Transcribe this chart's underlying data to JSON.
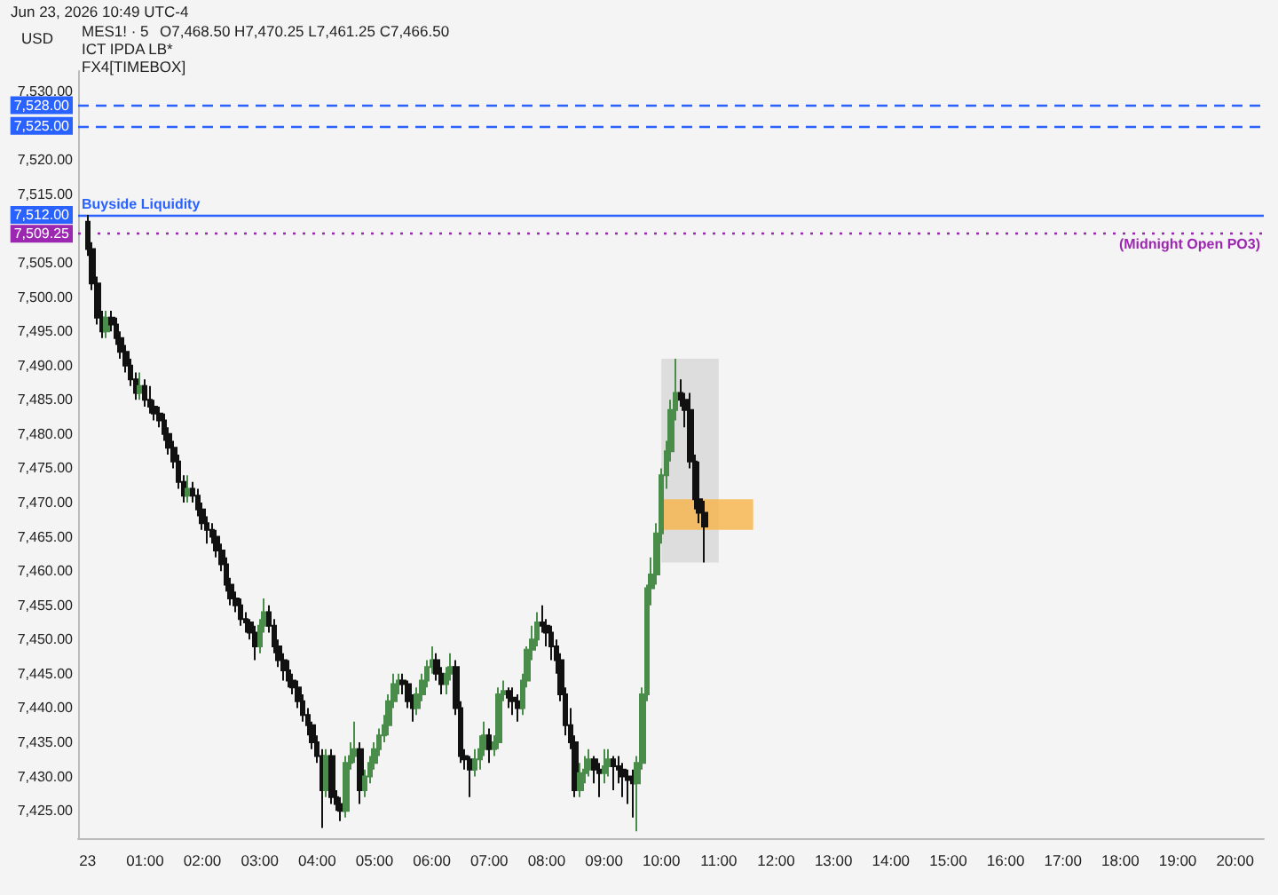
{
  "chart_data": {
    "type": "candlestick",
    "title": "MES1! · 5",
    "ylabel": "USD",
    "annotations": [
      "Jun 23, 2026 10:49 UTC-4",
      "O7,468.50 H7,470.25 L7,461.25 C7,466.50",
      "ICT IPDA LB*",
      "FX4[TIMEBOX]"
    ],
    "x": [
      "2026-06-23T00:00",
      "2026-06-23T00:05",
      "2026-06-23T00:10",
      "2026-06-23T00:15",
      "2026-06-23T00:20",
      "2026-06-23T00:25",
      "2026-06-23T00:30",
      "2026-06-23T00:35",
      "2026-06-23T00:40",
      "2026-06-23T00:45",
      "2026-06-23T00:50",
      "2026-06-23T00:55",
      "2026-06-23T01:00",
      "2026-06-23T01:05",
      "2026-06-23T01:10",
      "2026-06-23T01:15",
      "2026-06-23T01:20",
      "2026-06-23T01:25",
      "2026-06-23T01:30",
      "2026-06-23T01:35",
      "2026-06-23T01:40",
      "2026-06-23T01:45",
      "2026-06-23T01:50",
      "2026-06-23T01:55",
      "2026-06-23T02:00",
      "2026-06-23T02:05",
      "2026-06-23T02:10",
      "2026-06-23T02:15",
      "2026-06-23T02:20",
      "2026-06-23T02:25",
      "2026-06-23T02:30",
      "2026-06-23T02:35",
      "2026-06-23T02:40",
      "2026-06-23T02:45",
      "2026-06-23T02:50",
      "2026-06-23T02:55",
      "2026-06-23T03:00",
      "2026-06-23T03:05",
      "2026-06-23T03:10",
      "2026-06-23T03:15",
      "2026-06-23T03:20",
      "2026-06-23T03:25",
      "2026-06-23T03:30",
      "2026-06-23T03:35",
      "2026-06-23T03:40",
      "2026-06-23T03:45",
      "2026-06-23T03:50",
      "2026-06-23T03:55",
      "2026-06-23T04:00",
      "2026-06-23T04:05",
      "2026-06-23T04:10",
      "2026-06-23T04:15",
      "2026-06-23T04:20",
      "2026-06-23T04:25",
      "2026-06-23T04:30",
      "2026-06-23T04:35",
      "2026-06-23T04:40",
      "2026-06-23T04:45",
      "2026-06-23T04:50",
      "2026-06-23T04:55",
      "2026-06-23T05:00",
      "2026-06-23T05:05",
      "2026-06-23T05:10",
      "2026-06-23T05:15",
      "2026-06-23T05:20",
      "2026-06-23T05:25",
      "2026-06-23T05:30",
      "2026-06-23T05:35",
      "2026-06-23T05:40",
      "2026-06-23T05:45",
      "2026-06-23T05:50",
      "2026-06-23T05:55",
      "2026-06-23T06:00",
      "2026-06-23T06:05",
      "2026-06-23T06:10",
      "2026-06-23T06:15",
      "2026-06-23T06:20",
      "2026-06-23T06:25",
      "2026-06-23T06:30",
      "2026-06-23T06:35",
      "2026-06-23T06:40",
      "2026-06-23T06:45",
      "2026-06-23T06:50",
      "2026-06-23T06:55",
      "2026-06-23T07:00",
      "2026-06-23T07:05",
      "2026-06-23T07:10",
      "2026-06-23T07:15",
      "2026-06-23T07:20",
      "2026-06-23T07:25",
      "2026-06-23T07:30",
      "2026-06-23T07:35",
      "2026-06-23T07:40",
      "2026-06-23T07:45",
      "2026-06-23T07:50",
      "2026-06-23T07:55",
      "2026-06-23T08:00",
      "2026-06-23T08:05",
      "2026-06-23T08:10",
      "2026-06-23T08:15",
      "2026-06-23T08:20",
      "2026-06-23T08:25",
      "2026-06-23T08:30",
      "2026-06-23T08:35",
      "2026-06-23T08:40",
      "2026-06-23T08:45",
      "2026-06-23T08:50",
      "2026-06-23T08:55",
      "2026-06-23T09:00",
      "2026-06-23T09:05",
      "2026-06-23T09:10",
      "2026-06-23T09:15",
      "2026-06-23T09:20",
      "2026-06-23T09:25",
      "2026-06-23T09:30",
      "2026-06-23T09:35",
      "2026-06-23T09:40",
      "2026-06-23T09:45",
      "2026-06-23T09:50",
      "2026-06-23T09:55",
      "2026-06-23T10:00",
      "2026-06-23T10:05",
      "2026-06-23T10:10",
      "2026-06-23T10:15",
      "2026-06-23T10:20",
      "2026-06-23T10:25",
      "2026-06-23T10:30",
      "2026-06-23T10:35",
      "2026-06-23T10:40",
      "2026-06-23T10:45"
    ],
    "ohlc": [
      [
        7511,
        7512,
        7506,
        7507
      ],
      [
        7507,
        7508,
        7501,
        7502
      ],
      [
        7502,
        7503,
        7496,
        7497
      ],
      [
        7497,
        7498,
        7494,
        7495
      ],
      [
        7495,
        7498,
        7494,
        7497
      ],
      [
        7497,
        7498,
        7495,
        7496
      ],
      [
        7496,
        7497,
        7493,
        7494
      ],
      [
        7494,
        7495,
        7491,
        7492
      ],
      [
        7492,
        7493,
        7489,
        7490
      ],
      [
        7490,
        7491,
        7487,
        7488
      ],
      [
        7488,
        7489,
        7485,
        7486
      ],
      [
        7486,
        7489,
        7485,
        7487
      ],
      [
        7487,
        7488,
        7484,
        7485
      ],
      [
        7485,
        7487,
        7483,
        7484
      ],
      [
        7484,
        7485,
        7482,
        7483
      ],
      [
        7483,
        7484,
        7481,
        7482
      ],
      [
        7482,
        7483,
        7479,
        7480
      ],
      [
        7480,
        7481,
        7477,
        7478
      ],
      [
        7478,
        7479,
        7475,
        7476
      ],
      [
        7476,
        7477,
        7472,
        7473
      ],
      [
        7473,
        7474,
        7470,
        7471
      ],
      [
        7471,
        7474,
        7470,
        7472
      ],
      [
        7472,
        7473,
        7470,
        7471
      ],
      [
        7471,
        7472,
        7468,
        7469
      ],
      [
        7469,
        7470,
        7466,
        7467
      ],
      [
        7467,
        7468,
        7464,
        7466
      ],
      [
        7466,
        7467,
        7464,
        7465
      ],
      [
        7465,
        7466,
        7462,
        7463
      ],
      [
        7463,
        7464,
        7460,
        7461
      ],
      [
        7461,
        7462,
        7457,
        7458
      ],
      [
        7458,
        7459,
        7455,
        7456
      ],
      [
        7456,
        7457,
        7454,
        7455
      ],
      [
        7455,
        7456,
        7452,
        7453
      ],
      [
        7453,
        7454,
        7451,
        7452.5
      ],
      [
        7452.5,
        7453,
        7450,
        7451
      ],
      [
        7451,
        7452,
        7447,
        7449
      ],
      [
        7449,
        7453,
        7448,
        7452
      ],
      [
        7452,
        7456,
        7451,
        7454
      ],
      [
        7454,
        7455,
        7451,
        7452
      ],
      [
        7452,
        7453,
        7448,
        7449
      ],
      [
        7449,
        7450,
        7446,
        7447
      ],
      [
        7447,
        7448,
        7444,
        7445.5
      ],
      [
        7445.5,
        7447,
        7443,
        7444
      ],
      [
        7444,
        7445,
        7442,
        7443
      ],
      [
        7443,
        7444,
        7440,
        7441
      ],
      [
        7441,
        7442,
        7438,
        7439
      ],
      [
        7439,
        7440,
        7436,
        7437.5
      ],
      [
        7437.5,
        7438,
        7434,
        7435
      ],
      [
        7435,
        7436,
        7432,
        7433
      ],
      [
        7433,
        7434,
        7422.5,
        7428
      ],
      [
        7428,
        7434,
        7427,
        7433
      ],
      [
        7433,
        7434,
        7426,
        7427
      ],
      [
        7427,
        7428,
        7425,
        7426
      ],
      [
        7426,
        7427,
        7423.5,
        7425
      ],
      [
        7425,
        7433,
        7424,
        7432
      ],
      [
        7432,
        7435,
        7431,
        7433
      ],
      [
        7433,
        7438,
        7432,
        7434
      ],
      [
        7434,
        7435,
        7426,
        7428
      ],
      [
        7428,
        7431,
        7427,
        7430
      ],
      [
        7430,
        7433,
        7429,
        7432
      ],
      [
        7432,
        7435,
        7431,
        7434
      ],
      [
        7434,
        7437,
        7433,
        7436
      ],
      [
        7436,
        7439,
        7435,
        7437.5
      ],
      [
        7437.5,
        7442,
        7436,
        7441
      ],
      [
        7441,
        7445,
        7440,
        7443.5
      ],
      [
        7443.5,
        7445,
        7442,
        7444
      ],
      [
        7444,
        7445,
        7442,
        7443.5
      ],
      [
        7443.5,
        7444,
        7440,
        7441
      ],
      [
        7441,
        7442,
        7438,
        7440
      ],
      [
        7440,
        7443,
        7439,
        7442
      ],
      [
        7442,
        7445,
        7441,
        7444
      ],
      [
        7444,
        7447,
        7443,
        7446
      ],
      [
        7446,
        7449,
        7445,
        7447
      ],
      [
        7447,
        7448,
        7444,
        7445
      ],
      [
        7445,
        7446,
        7442,
        7443.5
      ],
      [
        7443.5,
        7446,
        7442,
        7445
      ],
      [
        7445,
        7448,
        7444,
        7446
      ],
      [
        7446,
        7447,
        7439,
        7440
      ],
      [
        7440,
        7441,
        7432,
        7433
      ],
      [
        7433,
        7434,
        7431,
        7432.5
      ],
      [
        7432.5,
        7433,
        7427,
        7431
      ],
      [
        7431,
        7434,
        7430,
        7432.5
      ],
      [
        7432.5,
        7436,
        7431,
        7434
      ],
      [
        7434,
        7438,
        7433,
        7436
      ],
      [
        7436,
        7437,
        7432,
        7434
      ],
      [
        7434,
        7436,
        7433,
        7435
      ],
      [
        7435,
        7443,
        7434,
        7442
      ],
      [
        7442,
        7444,
        7441,
        7442.5
      ],
      [
        7442.5,
        7443,
        7440,
        7441.5
      ],
      [
        7441.5,
        7443,
        7439,
        7441
      ],
      [
        7441,
        7442,
        7438,
        7440
      ],
      [
        7440,
        7445,
        7439,
        7444
      ],
      [
        7444,
        7449,
        7443,
        7448.5
      ],
      [
        7448.5,
        7452,
        7447,
        7450
      ],
      [
        7450,
        7454,
        7449,
        7452.5
      ],
      [
        7452.5,
        7455,
        7451,
        7452
      ],
      [
        7452,
        7453,
        7449,
        7451
      ],
      [
        7451,
        7452,
        7447,
        7449
      ],
      [
        7449,
        7450,
        7445,
        7447
      ],
      [
        7447,
        7448,
        7441,
        7442
      ],
      [
        7442,
        7443,
        7436,
        7437.5
      ],
      [
        7437.5,
        7440,
        7434,
        7435
      ],
      [
        7435,
        7436,
        7427,
        7428
      ],
      [
        7428,
        7432,
        7427,
        7430.5
      ],
      [
        7430.5,
        7433,
        7429,
        7431
      ],
      [
        7431,
        7434,
        7430,
        7432.5
      ],
      [
        7432.5,
        7433,
        7429,
        7431
      ],
      [
        7431,
        7432,
        7427,
        7430.5
      ],
      [
        7430.5,
        7434,
        7429,
        7431.5
      ],
      [
        7431.5,
        7434,
        7430,
        7432.5
      ],
      [
        7432.5,
        7433,
        7428,
        7431.5
      ],
      [
        7431.5,
        7433,
        7429,
        7431
      ],
      [
        7431,
        7432,
        7427,
        7430
      ],
      [
        7430,
        7431,
        7426,
        7429.5
      ],
      [
        7429.5,
        7431,
        7424,
        7429
      ],
      [
        7429,
        7433,
        7422,
        7432
      ],
      [
        7432,
        7443,
        7431,
        7442
      ],
      [
        7442,
        7458,
        7441,
        7457.5
      ],
      [
        7457.5,
        7462,
        7455,
        7459.5
      ],
      [
        7459.5,
        7467,
        7458,
        7465.5
      ],
      [
        7465.5,
        7475,
        7464,
        7474
      ],
      [
        7474,
        7479,
        7472,
        7477.5
      ],
      [
        7477.5,
        7485,
        7476,
        7483.5
      ],
      [
        7483.5,
        7491,
        7482,
        7486
      ],
      [
        7486,
        7488,
        7484,
        7485
      ],
      [
        7485,
        7486,
        7481,
        7483.5
      ],
      [
        7483.5,
        7486,
        7475,
        7476
      ],
      [
        7476,
        7477,
        7469,
        7470.5
      ],
      [
        7470.5,
        7476,
        7467,
        7468.5
      ],
      [
        7468.5,
        7470.25,
        7461.25,
        7466.5
      ]
    ],
    "xlim": [
      "2026-06-22T23:50",
      "2026-06-23T20:30"
    ],
    "xticks": [
      {
        "value": "2026-06-23T00:00",
        "label": "23"
      },
      {
        "value": "2026-06-23T01:00",
        "label": "01:00"
      },
      {
        "value": "2026-06-23T02:00",
        "label": "02:00"
      },
      {
        "value": "2026-06-23T03:00",
        "label": "03:00"
      },
      {
        "value": "2026-06-23T04:00",
        "label": "04:00"
      },
      {
        "value": "2026-06-23T05:00",
        "label": "05:00"
      },
      {
        "value": "2026-06-23T06:00",
        "label": "06:00"
      },
      {
        "value": "2026-06-23T07:00",
        "label": "07:00"
      },
      {
        "value": "2026-06-23T08:00",
        "label": "08:00"
      },
      {
        "value": "2026-06-23T09:00",
        "label": "09:00"
      },
      {
        "value": "2026-06-23T10:00",
        "label": "10:00"
      },
      {
        "value": "2026-06-23T11:00",
        "label": "11:00"
      },
      {
        "value": "2026-06-23T12:00",
        "label": "12:00"
      },
      {
        "value": "2026-06-23T13:00",
        "label": "13:00"
      },
      {
        "value": "2026-06-23T14:00",
        "label": "14:00"
      },
      {
        "value": "2026-06-23T15:00",
        "label": "15:00"
      },
      {
        "value": "2026-06-23T16:00",
        "label": "16:00"
      },
      {
        "value": "2026-06-23T17:00",
        "label": "17:00"
      },
      {
        "value": "2026-06-23T18:00",
        "label": "18:00"
      },
      {
        "value": "2026-06-23T19:00",
        "label": "19:00"
      },
      {
        "value": "2026-06-23T20:00",
        "label": "20:00"
      }
    ],
    "ylim": [
      7421,
      7533
    ],
    "yticks": [
      {
        "value": 7425,
        "label": "7,425.00"
      },
      {
        "value": 7430,
        "label": "7,430.00"
      },
      {
        "value": 7435,
        "label": "7,435.00"
      },
      {
        "value": 7440,
        "label": "7,440.00"
      },
      {
        "value": 7445,
        "label": "7,445.00"
      },
      {
        "value": 7450,
        "label": "7,450.00"
      },
      {
        "value": 7455,
        "label": "7,455.00"
      },
      {
        "value": 7460,
        "label": "7,460.00"
      },
      {
        "value": 7465,
        "label": "7,465.00"
      },
      {
        "value": 7470,
        "label": "7,470.00"
      },
      {
        "value": 7475,
        "label": "7,475.00"
      },
      {
        "value": 7480,
        "label": "7,480.00"
      },
      {
        "value": 7485,
        "label": "7,485.00"
      },
      {
        "value": 7490,
        "label": "7,490.00"
      },
      {
        "value": 7495,
        "label": "7,495.00"
      },
      {
        "value": 7500,
        "label": "7,500.00"
      },
      {
        "value": 7505,
        "label": "7,505.00"
      },
      {
        "value": 7509.25,
        "label": "7,509.25"
      },
      {
        "value": 7512,
        "label": "7,512.00"
      },
      {
        "value": 7515,
        "label": "7,515.00"
      },
      {
        "value": 7520,
        "label": "7,520.00"
      },
      {
        "value": 7525,
        "label": "7,525.00"
      },
      {
        "value": 7528,
        "label": "7,528.00"
      },
      {
        "value": 7530,
        "label": "7,530.00"
      }
    ],
    "ref_lines": [
      {
        "axis": "y",
        "value": 7528,
        "color": "#2962ff",
        "line_style": "dashed"
      },
      {
        "axis": "y",
        "value": 7525,
        "color": "#2962ff",
        "line_style": "dashed"
      },
      {
        "axis": "y",
        "value": 7512,
        "label": "Buyside Liquidity",
        "color": "#2962ff",
        "line_style": "solid"
      },
      {
        "axis": "y",
        "value": 7509.25,
        "label": "(Midnight Open PO3)",
        "color": "#9c27b0",
        "line_style": "dotted"
      }
    ],
    "bands": [
      {
        "axis": "x",
        "from": "2026-06-23T10:00",
        "to": "2026-06-23T11:00",
        "color": "#d6d6d6"
      },
      {
        "axis": "y",
        "from": 7466,
        "to": 7470.5,
        "color": "#f7b449"
      }
    ],
    "grid": false
  }
}
